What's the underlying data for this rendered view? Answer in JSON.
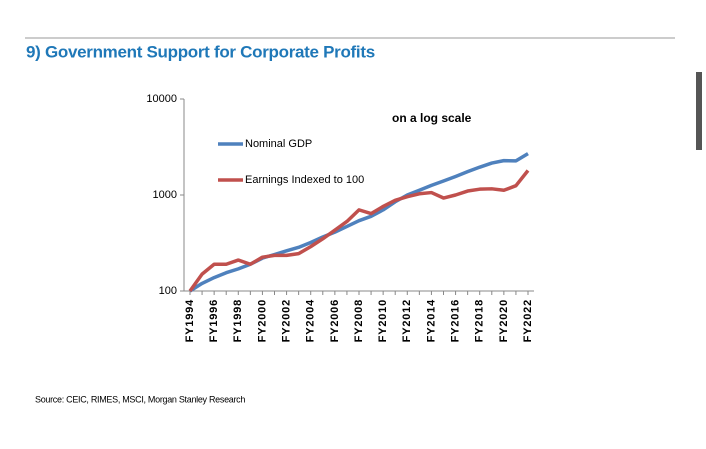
{
  "chart_data": {
    "type": "line",
    "title": "9) Government Support for Corporate Profits",
    "annotation": "on a log scale",
    "source": "Source: CEIC, RIMES, MSCI, Morgan Stanley Research",
    "categories": [
      "FY1994",
      null,
      "FY1996",
      null,
      "FY1998",
      null,
      "FY2000",
      null,
      "FY2002",
      null,
      "FY2004",
      null,
      "FY2006",
      null,
      "FY2008",
      null,
      "FY2010",
      null,
      "FY2012",
      null,
      "FY2014",
      null,
      "FY2016",
      null,
      "FY2018",
      null,
      "FY2020",
      null,
      "FY2022"
    ],
    "series": [
      {
        "name": "Nominal GDP",
        "color": "#4f81bd",
        "values": [
          100,
          120,
          138,
          155,
          170,
          190,
          220,
          240,
          262,
          285,
          320,
          365,
          410,
          470,
          540,
          600,
          700,
          850,
          1000,
          1120,
          1260,
          1400,
          1560,
          1750,
          1950,
          2150,
          2280,
          2270,
          2700
        ]
      },
      {
        "name": "Earnings Indexed to 100",
        "color": "#c0504d",
        "values": [
          100,
          150,
          190,
          190,
          210,
          190,
          225,
          235,
          235,
          245,
          290,
          350,
          430,
          530,
          700,
          640,
          760,
          880,
          960,
          1030,
          1060,
          930,
          1000,
          1100,
          1150,
          1160,
          1120,
          1250,
          1800
        ]
      }
    ],
    "ylog": true,
    "ylim": [
      100,
      10000
    ],
    "yticks": [
      100,
      1000,
      10000
    ]
  }
}
